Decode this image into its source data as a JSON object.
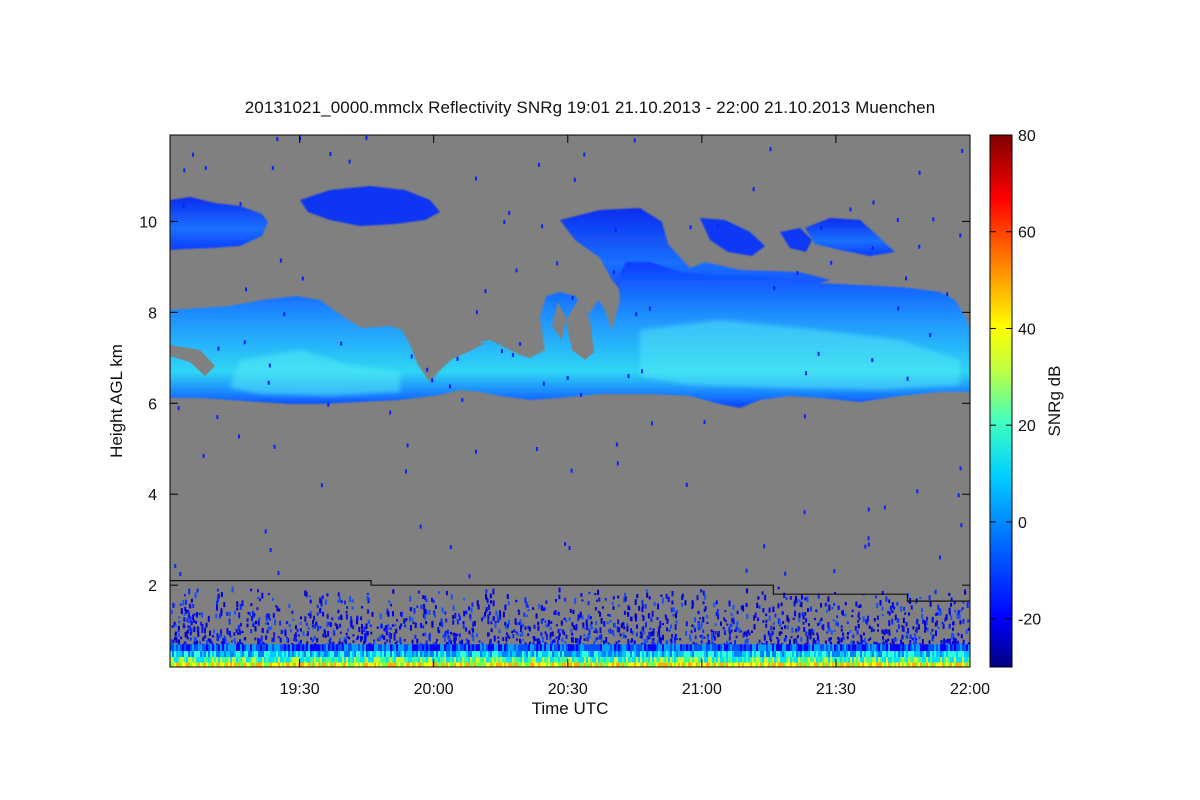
{
  "chart_data": {
    "type": "heatmap",
    "title": "20131021_0000.mmclx Reflectivity SNRg   19:01 21.10.2013 - 22:00 21.10.2013 Muenchen",
    "xlabel": "Time UTC",
    "ylabel": "Height AGL km",
    "colorbar_label": "SNRg dB",
    "x_range": [
      "19:01",
      "22:00"
    ],
    "ylim": [
      0.2,
      11.9
    ],
    "x_ticks": [
      "19:30",
      "20:00",
      "20:30",
      "21:00",
      "21:30",
      "22:00"
    ],
    "y_ticks": [
      2,
      4,
      6,
      8,
      10
    ],
    "colorbar_range": [
      -30,
      80
    ],
    "colorbar_ticks": [
      -20,
      0,
      20,
      40,
      60,
      80
    ],
    "background_color": "#808080",
    "colormap": [
      "#000080",
      "#0000ff",
      "#0080ff",
      "#00ffff",
      "#80ff80",
      "#ffff00",
      "#ff8000",
      "#ff0000",
      "#800000"
    ],
    "features": [
      {
        "name": "upper cirrus layer",
        "height_km": [
          9.5,
          10.7
        ],
        "time_span": [
          "19:01",
          "21:55"
        ],
        "snr_db": [
          -20,
          -5
        ]
      },
      {
        "name": "mid-level cloud layer",
        "height_km": [
          6.0,
          9.2
        ],
        "time_span": [
          "19:01",
          "22:00"
        ],
        "snr_db": [
          -15,
          10
        ]
      },
      {
        "name": "boundary layer clutter",
        "height_km": [
          0.2,
          2.0
        ],
        "time_span": [
          "19:01",
          "22:00"
        ],
        "snr_db": [
          -20,
          40
        ]
      }
    ],
    "overlay_line": {
      "name": "boundary layer top",
      "points": [
        [
          "19:01",
          2.1
        ],
        [
          "19:46",
          2.1
        ],
        [
          "19:46",
          2.0
        ],
        [
          "21:16",
          2.0
        ],
        [
          "21:16",
          1.8
        ],
        [
          "21:46",
          1.8
        ],
        [
          "21:46",
          1.65
        ],
        [
          "22:00",
          1.65
        ]
      ]
    }
  }
}
